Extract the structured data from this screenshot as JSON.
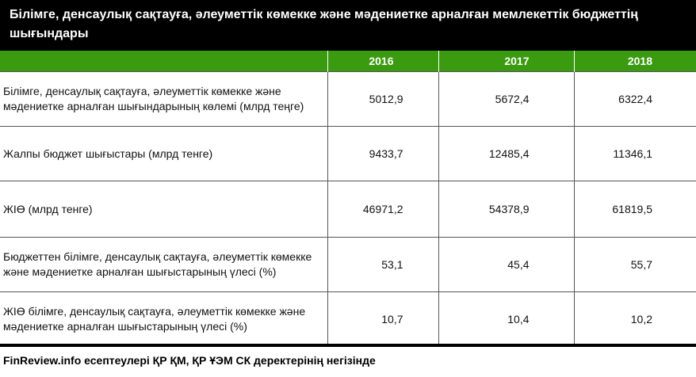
{
  "title": "Білімге, денсаулық сақтауға, әлеуметтік көмекке және мәдениетке арналған мемлекеттік бюджеттің шығындары",
  "header": {
    "years": [
      "2016",
      "2017",
      "2018"
    ]
  },
  "rows": [
    {
      "label": "Білімге, денсаулық сақтауға, әлеуметтік көмекке және мәдениетке арналған шығындарының көлемі (млрд теңге)",
      "values": [
        "5012,9",
        "5672,4",
        "6322,4"
      ]
    },
    {
      "label": "Жалпы бюджет шығыстары (млрд тенге)",
      "values": [
        "9433,7",
        "12485,4",
        "11346,1"
      ]
    },
    {
      "label": "ЖІӨ (млрд тенге)",
      "values": [
        "46971,2",
        "54378,9",
        "61819,5"
      ]
    },
    {
      "label": "Бюджеттен білімге, денсаулық сақтауға, әлеуметтік көмекке және мәдениетке арналған шығыстарының үлесі (%)",
      "values": [
        "53,1",
        "45,4",
        "55,7"
      ]
    },
    {
      "label": "ЖІӨ білімге, денсаулық сақтауға, әлеуметтік көмекке және мәдениетке арналған шығыстарының үлесі (%)",
      "values": [
        "10,7",
        "10,4",
        "10,2"
      ]
    }
  ],
  "footer": "FinReview.info есептеулері ҚР ҚМ, ҚР ҰЭМ СК деректерінің негізінде",
  "colors": {
    "title_bg": "#000000",
    "header_bg": "#3a9a10",
    "text": "#111111"
  }
}
